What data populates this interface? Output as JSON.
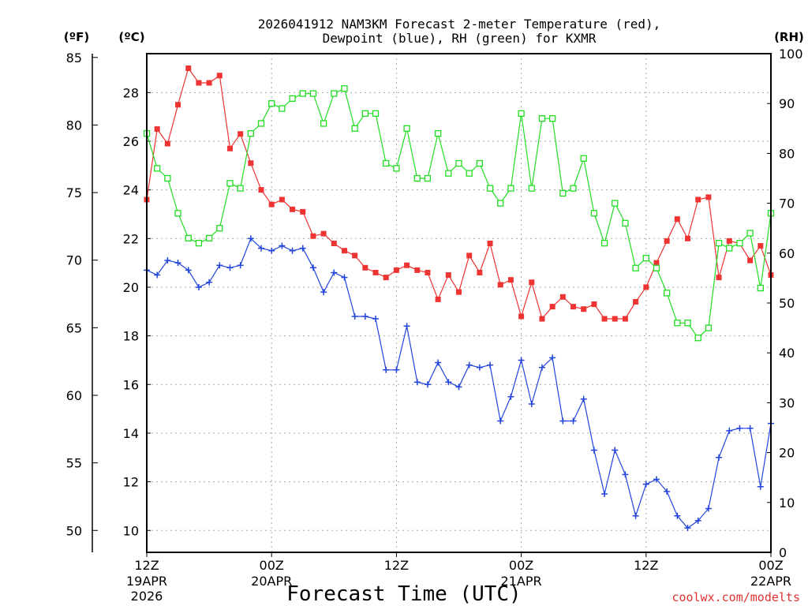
{
  "chart_data": {
    "type": "line",
    "title_line1": "2026041912 NAM3KM Forecast 2-meter Temperature (red),",
    "title_line2": "Dewpoint (blue), RH (green) for KXMR",
    "xlabel": "Forecast Time (UTC)",
    "credit": "coolwx.com/modelts",
    "axes": {
      "fahrenheit": {
        "label": "(ºF)",
        "ticks": [
          50,
          55,
          60,
          65,
          70,
          75,
          80,
          85
        ]
      },
      "celsius": {
        "label": "(ºC)",
        "ticks": [
          10,
          12,
          14,
          16,
          18,
          20,
          22,
          24,
          26,
          28
        ],
        "ylim": [
          9.1,
          29.6
        ]
      },
      "rh": {
        "label": "(RH)",
        "ticks": [
          0,
          10,
          20,
          30,
          40,
          50,
          60,
          70,
          80,
          90,
          100
        ],
        "ylim": [
          0,
          100
        ]
      },
      "x_hours": [
        0,
        60
      ]
    },
    "x_ticks": [
      {
        "hour": 0,
        "l1": "12Z",
        "l2": "19APR",
        "l3": "2026"
      },
      {
        "hour": 12,
        "l1": "00Z",
        "l2": "20APR",
        "l3": ""
      },
      {
        "hour": 24,
        "l1": "12Z",
        "l2": "",
        "l3": ""
      },
      {
        "hour": 36,
        "l1": "00Z",
        "l2": "21APR",
        "l3": ""
      },
      {
        "hour": 48,
        "l1": "12Z",
        "l2": "",
        "l3": ""
      },
      {
        "hour": 60,
        "l1": "00Z",
        "l2": "22APR",
        "l3": ""
      }
    ],
    "series": [
      {
        "name": "Temperature",
        "units": "C",
        "color": "#ee3333",
        "marker": "filled-square",
        "values": [
          23.6,
          26.5,
          25.9,
          27.5,
          29.0,
          28.4,
          28.4,
          28.7,
          25.7,
          26.3,
          25.1,
          24.0,
          23.4,
          23.6,
          23.2,
          23.1,
          22.1,
          22.2,
          21.8,
          21.5,
          21.3,
          20.8,
          20.6,
          20.4,
          20.7,
          20.9,
          20.7,
          20.6,
          19.5,
          20.5,
          19.8,
          21.3,
          20.6,
          21.8,
          20.1,
          20.3,
          18.8,
          20.2,
          18.7,
          19.2,
          19.6,
          19.2,
          19.1,
          19.3,
          18.7,
          18.7,
          18.7,
          19.4,
          20.0,
          21.0,
          21.9,
          22.8,
          22.0,
          23.6,
          23.7,
          20.4,
          21.9,
          21.8,
          21.1,
          21.7,
          20.5
        ]
      },
      {
        "name": "Dewpoint",
        "units": "C",
        "color": "#2244dd",
        "marker": "plus",
        "values": [
          20.7,
          20.5,
          21.1,
          21.0,
          20.7,
          20.0,
          20.2,
          20.9,
          20.8,
          20.9,
          22.0,
          21.6,
          21.5,
          21.7,
          21.5,
          21.6,
          20.8,
          19.8,
          20.6,
          20.4,
          18.8,
          18.8,
          18.7,
          16.6,
          16.6,
          18.4,
          16.1,
          16.0,
          16.9,
          16.1,
          15.9,
          16.8,
          16.7,
          16.8,
          14.5,
          15.5,
          17.0,
          15.2,
          16.7,
          17.1,
          14.5,
          14.5,
          15.4,
          13.3,
          11.5,
          13.3,
          12.3,
          10.6,
          11.9,
          12.1,
          11.6,
          10.6,
          10.1,
          10.4,
          10.9,
          13.0,
          14.1,
          14.2,
          14.2,
          11.8,
          14.4
        ]
      },
      {
        "name": "RH",
        "units": "%",
        "color": "#22dd22",
        "marker": "open-square",
        "values": [
          84,
          77,
          75,
          68,
          63,
          62,
          63,
          65,
          74,
          73,
          84,
          86,
          90,
          89,
          91,
          92,
          92,
          86,
          92,
          93,
          85,
          88,
          88,
          78,
          77,
          85,
          75,
          75,
          84,
          76,
          78,
          76,
          78,
          73,
          70,
          73,
          88,
          73,
          87,
          87,
          72,
          73,
          79,
          68,
          62,
          70,
          66,
          57,
          59,
          57,
          52,
          46,
          46,
          43,
          45,
          62,
          61,
          62,
          64,
          53,
          68
        ]
      }
    ]
  }
}
